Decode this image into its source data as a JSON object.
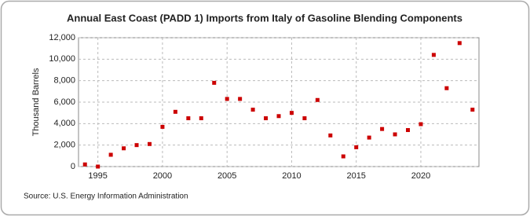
{
  "chart_data": {
    "type": "scatter",
    "title": "Annual East Coast (PADD 1) Imports from Italy of Gasoline Blending Components",
    "y_label": "Thousand Barrels",
    "source": "Source: U.S. Energy Information Administration",
    "color": "#cc0000",
    "x": [
      1994,
      1995,
      1996,
      1997,
      1998,
      1999,
      2000,
      2001,
      2002,
      2003,
      2004,
      2005,
      2006,
      2007,
      2008,
      2009,
      2010,
      2011,
      2012,
      2013,
      2014,
      2015,
      2016,
      2017,
      2018,
      2019,
      2020,
      2021,
      2022,
      2023,
      2024
    ],
    "values": [
      200,
      0,
      1100,
      1700,
      2000,
      2100,
      3700,
      5100,
      4500,
      4500,
      7800,
      6300,
      6300,
      5300,
      4500,
      4700,
      5000,
      4500,
      6200,
      2900,
      950,
      1800,
      2700,
      3500,
      3000,
      3400,
      3950,
      10400,
      7300,
      11500,
      5300
    ],
    "xlim": [
      1993.5,
      2024.5
    ],
    "xticks": [
      1995,
      2000,
      2005,
      2010,
      2015,
      2020
    ],
    "ylim": [
      0,
      12000
    ],
    "yticks": [
      0,
      {
        "value": 2000,
        "label": "2,000"
      },
      {
        "value": 4000,
        "label": "4,000"
      },
      {
        "value": 6000,
        "label": "6,000"
      },
      {
        "value": 8000,
        "label": "8,000"
      },
      {
        "value": 10000,
        "label": "10,000"
      },
      {
        "value": 12000,
        "label": "12,000"
      }
    ],
    "grid": true
  }
}
